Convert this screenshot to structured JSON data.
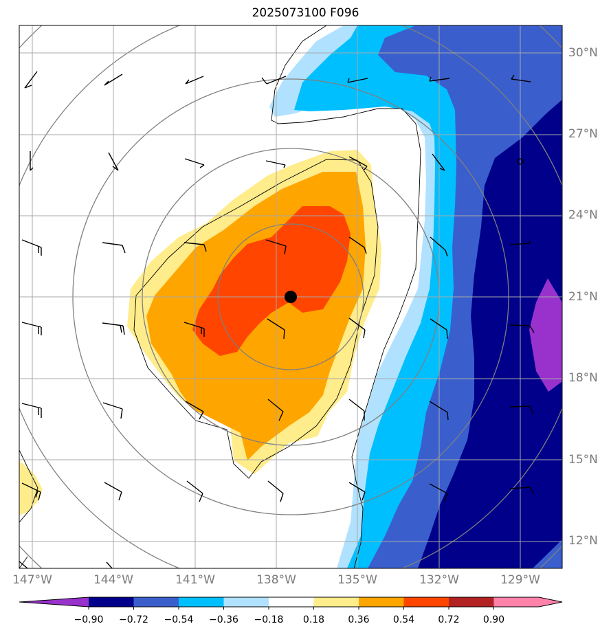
{
  "title": "2025073100 F096",
  "latitude_labels": [
    "30°N",
    "27°N",
    "24°N",
    "21°N",
    "18°N",
    "15°N",
    "12°N"
  ],
  "longitude_labels": [
    "147°W",
    "144°W",
    "141°W",
    "138°W",
    "135°W",
    "132°W",
    "129°W"
  ],
  "colorbar": {
    "ticks": [
      "−0.90",
      "−0.72",
      "−0.54",
      "−0.36",
      "−0.18",
      "0.18",
      "0.36",
      "0.54",
      "0.72",
      "0.90"
    ],
    "colors": [
      "#9932cc",
      "#00008b",
      "#3a5fcd",
      "#00bfff",
      "#b0e2ff",
      "#ffffff",
      "#ffec8b",
      "#ffa500",
      "#ff4500",
      "#b22222",
      "#ff82ab"
    ]
  },
  "colors": {
    "grid": "#a8a8a8",
    "range_rings": "#7f7f7f",
    "frame": "#000000",
    "label": "#7a7a7a"
  },
  "storm_center": {
    "lon": -137.4,
    "lat": 21.0
  },
  "secondary_marker": {
    "lon": -129.0,
    "lat": 26.0
  },
  "icons": [
    "storm-center-icon",
    "wind-barb-icon",
    "range-ring-icon"
  ]
}
